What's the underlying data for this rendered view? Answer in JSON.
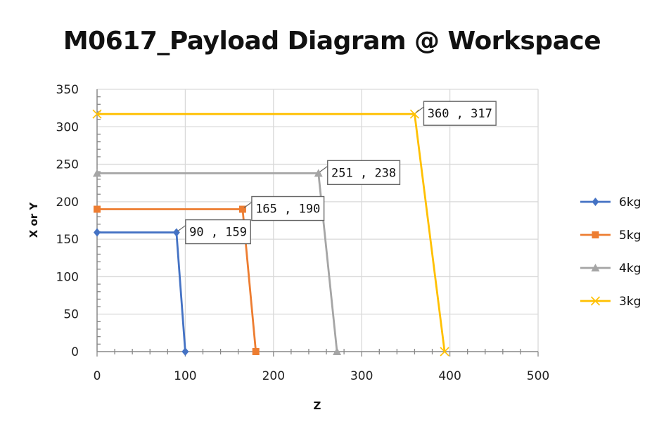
{
  "chart_data": {
    "type": "line",
    "title": "M0617_Payload Diagram @ Workspace",
    "xlabel": "Z",
    "ylabel": "X or Y",
    "xlim": [
      0,
      500
    ],
    "ylim": [
      0,
      350
    ],
    "xticks": [
      0,
      100,
      200,
      300,
      400,
      500
    ],
    "yticks": [
      0,
      50,
      100,
      150,
      200,
      250,
      300,
      350
    ],
    "grid": true,
    "legend_position": "right",
    "series": [
      {
        "name": "6kg",
        "color": "#4472C4",
        "marker": "diamond",
        "points": [
          [
            0,
            159
          ],
          [
            90,
            159
          ],
          [
            100,
            0
          ]
        ],
        "data_label": "90 , 159",
        "label_index": 1
      },
      {
        "name": "5kg",
        "color": "#ED7D31",
        "marker": "square",
        "points": [
          [
            0,
            190
          ],
          [
            165,
            190
          ],
          [
            180,
            0
          ]
        ],
        "data_label": "165 , 190",
        "label_index": 1
      },
      {
        "name": "4kg",
        "color": "#A5A5A5",
        "marker": "triangle",
        "points": [
          [
            0,
            238
          ],
          [
            251,
            238
          ],
          [
            272,
            0
          ]
        ],
        "data_label": "251 , 238",
        "label_index": 1
      },
      {
        "name": "3kg",
        "color": "#FFC000",
        "marker": "x",
        "points": [
          [
            0,
            317
          ],
          [
            360,
            317
          ],
          [
            394,
            0
          ]
        ],
        "data_label": "360 , 317",
        "label_index": 1
      }
    ]
  }
}
